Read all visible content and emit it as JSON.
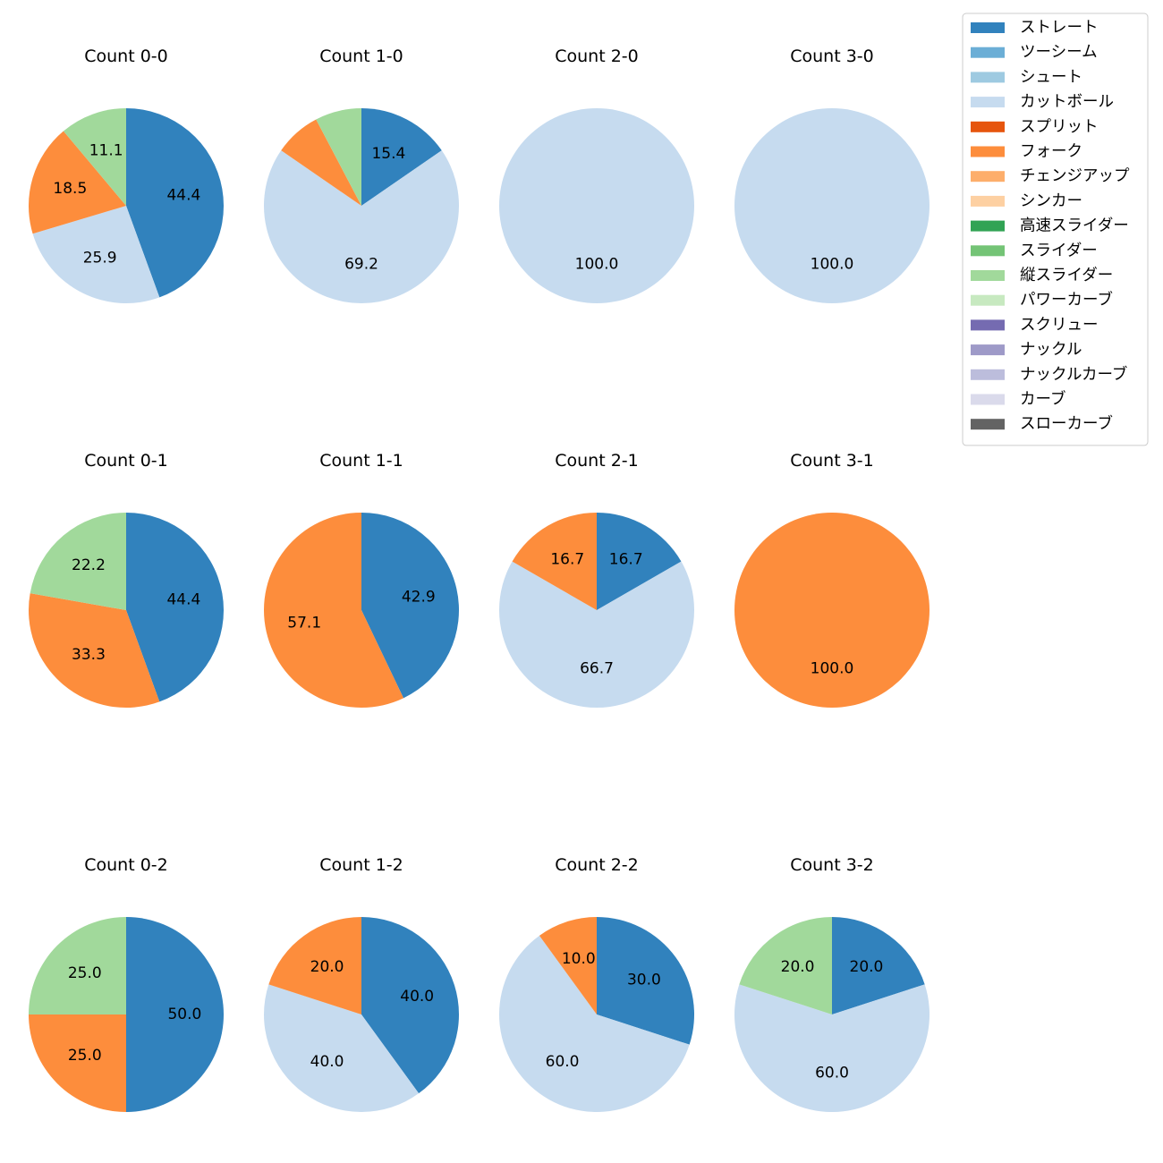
{
  "chart_data": {
    "type": "pie",
    "legend": {
      "placement": "top-right",
      "entries": [
        {
          "name": "ストレート",
          "color": "#3182bd"
        },
        {
          "name": "ツーシーム",
          "color": "#6baed6"
        },
        {
          "name": "シュート",
          "color": "#9ecae1"
        },
        {
          "name": "カットボール",
          "color": "#c6dbef"
        },
        {
          "name": "スプリット",
          "color": "#e6550d"
        },
        {
          "name": "フォーク",
          "color": "#fd8d3c"
        },
        {
          "name": "チェンジアップ",
          "color": "#fdae6b"
        },
        {
          "name": "シンカー",
          "color": "#fdd0a2"
        },
        {
          "name": "高速スライダー",
          "color": "#31a354"
        },
        {
          "name": "スライダー",
          "color": "#74c476"
        },
        {
          "name": "縦スライダー",
          "color": "#a1d99b"
        },
        {
          "name": "パワーカーブ",
          "color": "#c7e9c0"
        },
        {
          "name": "スクリュー",
          "color": "#756bb1"
        },
        {
          "name": "ナックル",
          "color": "#9e9ac8"
        },
        {
          "name": "ナックルカーブ",
          "color": "#bcbddc"
        },
        {
          "name": "カーブ",
          "color": "#dadaeb"
        },
        {
          "name": "スローカーブ",
          "color": "#636363"
        }
      ]
    },
    "pies": [
      {
        "title": "Count 0-0",
        "slices": [
          {
            "name": "ストレート",
            "value": 44.4,
            "label": "44.4"
          },
          {
            "name": "カットボール",
            "value": 25.9,
            "label": "25.9"
          },
          {
            "name": "フォーク",
            "value": 18.5,
            "label": "18.5"
          },
          {
            "name": "縦スライダー",
            "value": 11.1,
            "label": "11.1"
          }
        ]
      },
      {
        "title": "Count 1-0",
        "slices": [
          {
            "name": "ストレート",
            "value": 15.4,
            "label": "15.4"
          },
          {
            "name": "カットボール",
            "value": 69.2,
            "label": "69.2"
          },
          {
            "name": "フォーク",
            "value": 7.7,
            "label": ""
          },
          {
            "name": "縦スライダー",
            "value": 7.7,
            "label": ""
          }
        ]
      },
      {
        "title": "Count 2-0",
        "slices": [
          {
            "name": "カットボール",
            "value": 100.0,
            "label": "100.0"
          }
        ]
      },
      {
        "title": "Count 3-0",
        "slices": [
          {
            "name": "カットボール",
            "value": 100.0,
            "label": "100.0"
          }
        ]
      },
      {
        "title": "Count 0-1",
        "slices": [
          {
            "name": "ストレート",
            "value": 44.4,
            "label": "44.4"
          },
          {
            "name": "フォーク",
            "value": 33.3,
            "label": "33.3"
          },
          {
            "name": "縦スライダー",
            "value": 22.2,
            "label": "22.2"
          }
        ]
      },
      {
        "title": "Count 1-1",
        "slices": [
          {
            "name": "ストレート",
            "value": 42.9,
            "label": "42.9"
          },
          {
            "name": "フォーク",
            "value": 57.1,
            "label": "57.1"
          }
        ]
      },
      {
        "title": "Count 2-1",
        "slices": [
          {
            "name": "ストレート",
            "value": 16.7,
            "label": "16.7"
          },
          {
            "name": "カットボール",
            "value": 66.7,
            "label": "66.7"
          },
          {
            "name": "フォーク",
            "value": 16.7,
            "label": "16.7"
          }
        ]
      },
      {
        "title": "Count 3-1",
        "slices": [
          {
            "name": "フォーク",
            "value": 100.0,
            "label": "100.0"
          }
        ]
      },
      {
        "title": "Count 0-2",
        "slices": [
          {
            "name": "ストレート",
            "value": 50.0,
            "label": "50.0"
          },
          {
            "name": "フォーク",
            "value": 25.0,
            "label": "25.0"
          },
          {
            "name": "縦スライダー",
            "value": 25.0,
            "label": "25.0"
          }
        ]
      },
      {
        "title": "Count 1-2",
        "slices": [
          {
            "name": "ストレート",
            "value": 40.0,
            "label": "40.0"
          },
          {
            "name": "カットボール",
            "value": 40.0,
            "label": "40.0"
          },
          {
            "name": "フォーク",
            "value": 20.0,
            "label": "20.0"
          }
        ]
      },
      {
        "title": "Count 2-2",
        "slices": [
          {
            "name": "ストレート",
            "value": 30.0,
            "label": "30.0"
          },
          {
            "name": "カットボール",
            "value": 60.0,
            "label": "60.0"
          },
          {
            "name": "フォーク",
            "value": 10.0,
            "label": "10.0"
          }
        ]
      },
      {
        "title": "Count 3-2",
        "slices": [
          {
            "name": "ストレート",
            "value": 20.0,
            "label": "20.0"
          },
          {
            "name": "カットボール",
            "value": 60.0,
            "label": "60.0"
          },
          {
            "name": "縦スライダー",
            "value": 20.0,
            "label": "20.0"
          }
        ]
      }
    ]
  }
}
